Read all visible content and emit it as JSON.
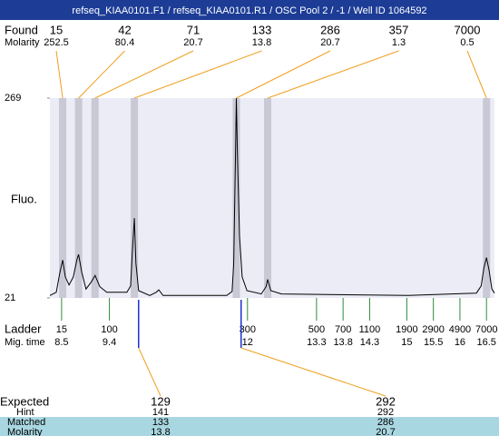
{
  "chart_data": {
    "type": "electropherogram",
    "title": "refseq_KIAA0101.F1 / refseq_KIAA0101.R1 / OSC Pool 2 / -1 / Well ID 1064592",
    "y_label": "Fluo.",
    "ylim": [
      21,
      269
    ],
    "yticks": [
      21,
      269
    ],
    "xlim": [
      8.28,
      16.65
    ],
    "trace": {
      "color": "#000000",
      "x": [
        8.28,
        8.4,
        8.47,
        8.52,
        8.57,
        8.64,
        8.72,
        8.79,
        8.82,
        8.88,
        8.96,
        9.06,
        9.13,
        9.22,
        9.35,
        9.73,
        9.8,
        9.83,
        9.87,
        9.9,
        9.95,
        10.16,
        10.28,
        10.33,
        10.41,
        11.61,
        11.71,
        11.74,
        11.78,
        11.79,
        11.81,
        11.85,
        11.9,
        11.99,
        12.26,
        12.35,
        12.38,
        12.44,
        12.64,
        15.03,
        16.31,
        16.4,
        16.45,
        16.5,
        16.55,
        16.6,
        16.65
      ],
      "values": [
        24,
        28,
        53,
        68,
        47,
        37,
        47,
        69,
        75,
        53,
        32,
        41,
        49,
        35,
        28,
        28,
        36,
        75,
        120,
        64,
        30,
        24,
        28,
        31,
        24,
        24,
        29,
        64,
        222,
        269,
        199,
        98,
        47,
        30,
        26,
        35,
        44,
        30,
        26,
        24,
        27,
        36,
        58,
        71,
        55,
        32,
        27
      ]
    },
    "found": {
      "label": "Found",
      "molarity_label": "Molarity",
      "sizes": [
        15,
        42,
        71,
        133,
        286,
        357,
        7000
      ],
      "molarity": [
        252.5,
        80.4,
        20.7,
        13.8,
        20.7,
        1.3,
        0.5
      ],
      "x": [
        8.52,
        8.82,
        9.13,
        9.87,
        11.79,
        12.38,
        16.5
      ]
    },
    "ladder": {
      "label": "Ladder",
      "time_label": "Mig. time",
      "sizes": [
        15,
        100,
        300,
        500,
        700,
        1100,
        1900,
        2900,
        4900,
        7000
      ],
      "x": [
        8.5,
        9.4,
        12,
        13.3,
        13.8,
        14.3,
        15,
        15.5,
        16,
        16.5
      ]
    },
    "expected": {
      "label": "Expected",
      "hint_label": "Hint",
      "matched_label": "Matched",
      "molarity_label": "Molarity",
      "sizes": [
        129,
        292
      ],
      "hint": [
        141,
        292
      ],
      "matched": [
        133,
        286
      ],
      "molarity": [
        13.8,
        20.7
      ],
      "x": [
        9.95,
        11.88
      ]
    }
  }
}
